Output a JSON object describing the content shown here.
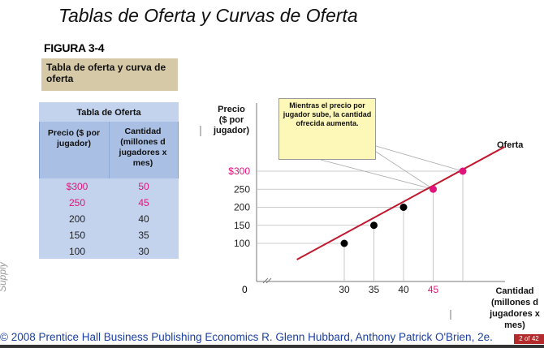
{
  "slide_title": "Tablas de Oferta y Curvas de Oferta",
  "figure_label": "FIGURA 3-4",
  "figure_caption": "Tabla de oferta y curva de oferta",
  "table": {
    "title": "Tabla de Oferta",
    "columns": [
      "Precio ($ por jugador)",
      "Cantidad (millones d jugadores x mes)"
    ],
    "rows": [
      {
        "price": "$300",
        "qty": "50",
        "highlight": true
      },
      {
        "price": "250",
        "qty": "45",
        "highlight": true
      },
      {
        "price": "200",
        "qty": "40",
        "highlight": false
      },
      {
        "price": "150",
        "qty": "35",
        "highlight": false
      },
      {
        "price": "100",
        "qty": "30",
        "highlight": false
      }
    ]
  },
  "callout_text": "Mientras el precio por jugador sube, la cantidad ofrecida aumenta.",
  "chart_data": {
    "type": "line",
    "ylabel": "Precio ($ por jugador)",
    "xlabel": "Cantidad (millones d jugadores x mes)",
    "series": [
      {
        "name": "Oferta",
        "color": "#c0182e",
        "points": [
          {
            "x": 30,
            "y": 100,
            "highlight": false
          },
          {
            "x": 35,
            "y": 150,
            "highlight": false
          },
          {
            "x": 40,
            "y": 200,
            "highlight": false
          },
          {
            "x": 45,
            "y": 250,
            "highlight": true
          },
          {
            "x": 50,
            "y": 300,
            "highlight": true
          }
        ]
      }
    ],
    "x_ticks": [
      "30",
      "35",
      "40",
      "45"
    ],
    "x_tick_values": [
      30,
      35,
      40,
      45
    ],
    "x_tick_highlight": [
      false,
      false,
      false,
      true
    ],
    "y_ticks": [
      "100",
      "150",
      "200",
      "250",
      "$300"
    ],
    "y_tick_values": [
      100,
      150,
      200,
      250,
      300
    ],
    "y_tick_highlight": [
      false,
      false,
      false,
      false,
      true
    ],
    "origin_label": "0",
    "highlight_color": "#e0147a",
    "grid": false
  },
  "side_label": "Supply",
  "footer": "© 2008 Prentice Hall Business Publishing   Economics  R. Glenn Hubbard, Anthony Patrick O'Brien, 2e.",
  "page_number": "2 of 42"
}
